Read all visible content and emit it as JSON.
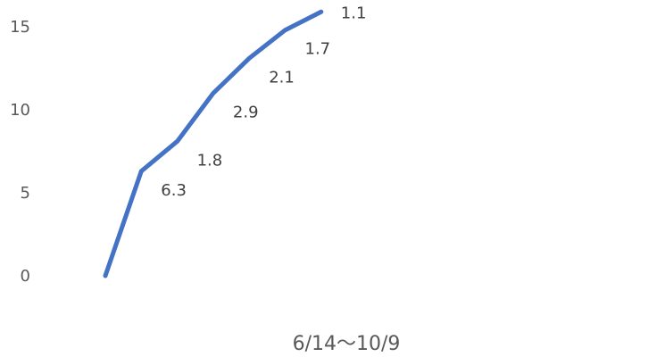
{
  "chart_data": {
    "type": "line",
    "xlabel": "6/14〜10/9",
    "ylabel": "",
    "ylim": [
      0,
      15
    ],
    "yticks": [
      "0",
      "5",
      "10",
      "15"
    ],
    "grid": false,
    "legend": "none",
    "series": [
      {
        "color": "#4472C4",
        "values": [
          0,
          6.3,
          8.1,
          11.0,
          13.1,
          14.8,
          15.9
        ],
        "labels": [
          "",
          "6.3",
          "1.8",
          "2.9",
          "2.1",
          "1.7",
          "1.1"
        ]
      }
    ]
  }
}
